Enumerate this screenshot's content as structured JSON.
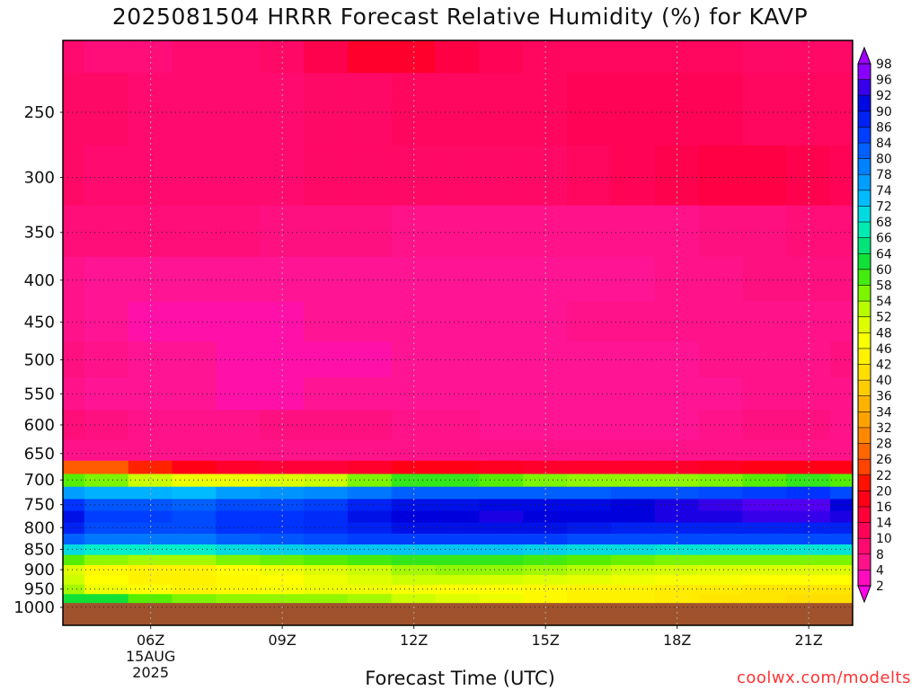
{
  "title": "2025081504 HRRR Forecast Relative Humidity (%) for KAVP",
  "xlabel": "Forecast Time (UTC)",
  "credit": "coolwx.com/modelts",
  "chart_data": {
    "type": "heatmap",
    "title": "2025081504 HRRR Forecast Relative Humidity (%) for KAVP",
    "xlabel": "Forecast Time (UTC)",
    "ylabel": "",
    "y_axis": "pressure (hPa), reversed, log scale",
    "y_ticks": [
      250,
      300,
      350,
      400,
      450,
      500,
      550,
      600,
      650,
      700,
      750,
      800,
      850,
      900,
      950,
      1000
    ],
    "x_ticks": [
      "06Z",
      "09Z",
      "12Z",
      "15Z",
      "18Z",
      "21Z"
    ],
    "x_date_label": [
      "15AUG",
      "2025"
    ],
    "x_hours": [
      4,
      5,
      6,
      7,
      8,
      9,
      10,
      11,
      12,
      13,
      14,
      15,
      16,
      17,
      18,
      19,
      20,
      21,
      22
    ],
    "x_range": [
      4,
      22
    ],
    "levels": [
      1000,
      975,
      950,
      925,
      900,
      875,
      850,
      825,
      800,
      775,
      750,
      725,
      700,
      675,
      650,
      600,
      550,
      500,
      450,
      400,
      350,
      300,
      250,
      200
    ],
    "grid": true,
    "colorbar": {
      "labels": [
        98,
        96,
        92,
        90,
        86,
        84,
        80,
        78,
        74,
        72,
        68,
        66,
        64,
        60,
        58,
        54,
        52,
        48,
        46,
        42,
        40,
        36,
        34,
        32,
        28,
        26,
        22,
        20,
        16,
        14,
        10,
        8,
        4,
        2
      ],
      "position": "right"
    },
    "below_ground_color": "#a0522d",
    "rh": [
      [
        0,
        0,
        0,
        0,
        0,
        0,
        0,
        0,
        0,
        0,
        0,
        0,
        0,
        0,
        0,
        0,
        0,
        0,
        0
      ],
      [
        62,
        62,
        58,
        56,
        55,
        55,
        55,
        54,
        52,
        50,
        48,
        45,
        44,
        44,
        43,
        42,
        42,
        41,
        41
      ],
      [
        54,
        48,
        46,
        44,
        45,
        47,
        48,
        48,
        47,
        46,
        46,
        45,
        44,
        44,
        43,
        43,
        42,
        42,
        42
      ],
      [
        52,
        46,
        44,
        44,
        45,
        46,
        48,
        50,
        52,
        52,
        51,
        50,
        49,
        48,
        47,
        47,
        46,
        46,
        46
      ],
      [
        50,
        45,
        44,
        44,
        46,
        48,
        50,
        52,
        54,
        55,
        55,
        54,
        53,
        52,
        51,
        50,
        50,
        50,
        50
      ],
      [
        58,
        55,
        54,
        54,
        56,
        57,
        58,
        59,
        60,
        60,
        60,
        59,
        58,
        57,
        56,
        56,
        56,
        56,
        56
      ],
      [
        70,
        68,
        68,
        68,
        70,
        71,
        72,
        72,
        72,
        72,
        72,
        71,
        70,
        70,
        69,
        69,
        69,
        69,
        69
      ],
      [
        82,
        80,
        80,
        80,
        82,
        83,
        84,
        85,
        85,
        85,
        85,
        85,
        84,
        84,
        84,
        84,
        84,
        84,
        84
      ],
      [
        88,
        84,
        84,
        84,
        86,
        86,
        87,
        88,
        90,
        90,
        90,
        90,
        89,
        88,
        88,
        88,
        88,
        88,
        88
      ],
      [
        90,
        85,
        85,
        84,
        86,
        86,
        87,
        90,
        92,
        92,
        93,
        92,
        92,
        92,
        93,
        93,
        94,
        94,
        93
      ],
      [
        86,
        83,
        83,
        82,
        84,
        84,
        85,
        88,
        90,
        90,
        91,
        91,
        91,
        92,
        93,
        94,
        95,
        95,
        92
      ],
      [
        76,
        74,
        74,
        73,
        76,
        77,
        78,
        80,
        82,
        82,
        82,
        82,
        82,
        83,
        83,
        84,
        85,
        86,
        84
      ],
      [
        58,
        56,
        52,
        48,
        48,
        50,
        52,
        56,
        60,
        60,
        58,
        56,
        55,
        55,
        55,
        56,
        58,
        60,
        58
      ],
      [
        26,
        26,
        22,
        18,
        16,
        15,
        15,
        16,
        18,
        18,
        17,
        16,
        16,
        16,
        16,
        17,
        18,
        18,
        18
      ],
      [
        6,
        6,
        6,
        6,
        6,
        6,
        6,
        6,
        6,
        6,
        6,
        6,
        6,
        6,
        6,
        6,
        6,
        6,
        6
      ],
      [
        8,
        7,
        6,
        6,
        6,
        7,
        7,
        7,
        6,
        6,
        5,
        5,
        5,
        5,
        5,
        6,
        7,
        7,
        6
      ],
      [
        6,
        5,
        5,
        5,
        4,
        4,
        5,
        5,
        5,
        5,
        5,
        5,
        5,
        5,
        5,
        5,
        6,
        6,
        6
      ],
      [
        7,
        6,
        5,
        5,
        4,
        4,
        4,
        4,
        5,
        5,
        5,
        5,
        5,
        5,
        5,
        6,
        6,
        6,
        7
      ],
      [
        6,
        5,
        4,
        4,
        4,
        4,
        5,
        5,
        5,
        5,
        5,
        5,
        6,
        6,
        6,
        6,
        6,
        6,
        6
      ],
      [
        6,
        5,
        5,
        5,
        5,
        5,
        5,
        5,
        5,
        5,
        5,
        5,
        5,
        5,
        6,
        6,
        7,
        7,
        7
      ],
      [
        8,
        8,
        8,
        8,
        8,
        7,
        7,
        7,
        6,
        6,
        6,
        6,
        6,
        6,
        6,
        7,
        7,
        8,
        8
      ],
      [
        10,
        9,
        9,
        9,
        9,
        9,
        10,
        10,
        10,
        10,
        10,
        10,
        11,
        12,
        13,
        14,
        14,
        13,
        12
      ],
      [
        10,
        10,
        9,
        9,
        9,
        9,
        10,
        10,
        11,
        11,
        11,
        11,
        12,
        12,
        12,
        12,
        11,
        11,
        11
      ],
      [
        9,
        8,
        8,
        9,
        9,
        10,
        13,
        16,
        16,
        14,
        12,
        11,
        11,
        11,
        11,
        11,
        10,
        10,
        10
      ]
    ]
  }
}
